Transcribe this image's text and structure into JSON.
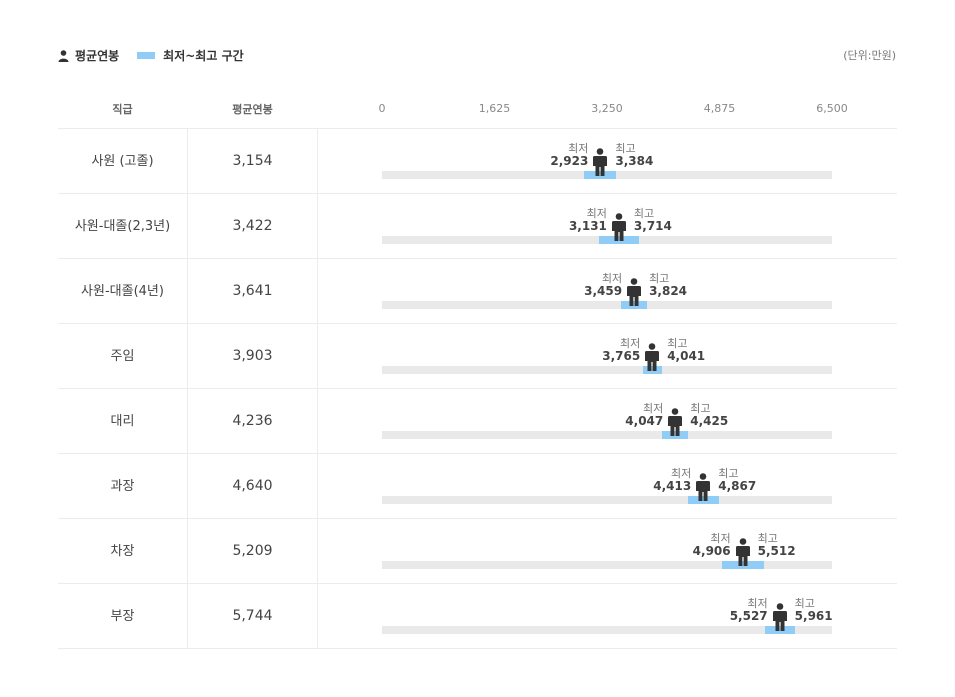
{
  "legend": {
    "avg_label": "평균연봉",
    "range_label": "최저~최고 구간",
    "avg_icon": "person-icon"
  },
  "unit_label": "(단위:만원)",
  "headers": {
    "rank": "직급",
    "avg": "평균연봉"
  },
  "labels": {
    "min": "최저",
    "max": "최고"
  },
  "colors": {
    "range": "#8fcdf7",
    "track": "#e9e9e9",
    "person": "#333333"
  },
  "chart_data": {
    "type": "range-bar",
    "xlim": [
      0,
      6500
    ],
    "x_ticks": [
      "0",
      "1,625",
      "3,250",
      "4,875",
      "6,500"
    ],
    "categories": [
      "사원 (고졸)",
      "사원-대졸(2,3년)",
      "사원-대졸(4년)",
      "주임",
      "대리",
      "과장",
      "차장",
      "부장"
    ],
    "avg": [
      3154,
      3422,
      3641,
      3903,
      4236,
      4640,
      5209,
      5744
    ],
    "avg_text": [
      "3,154",
      "3,422",
      "3,641",
      "3,903",
      "4,236",
      "4,640",
      "5,209",
      "5,744"
    ],
    "min": [
      2923,
      3131,
      3459,
      3765,
      4047,
      4413,
      4906,
      5527
    ],
    "min_text": [
      "2,923",
      "3,131",
      "3,459",
      "3,765",
      "4,047",
      "4,413",
      "4,906",
      "5,527"
    ],
    "max": [
      3384,
      3714,
      3824,
      4041,
      4425,
      4867,
      5512,
      5961
    ],
    "max_text": [
      "3,384",
      "3,714",
      "3,824",
      "4,041",
      "4,425",
      "4,867",
      "5,512",
      "5,961"
    ]
  }
}
